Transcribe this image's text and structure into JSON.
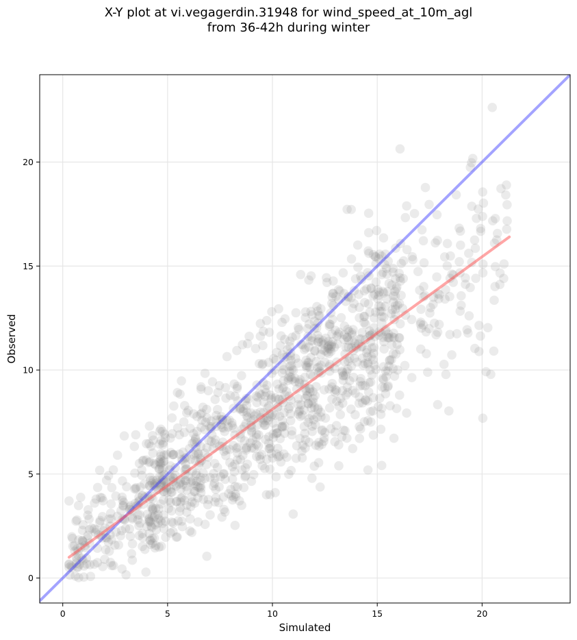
{
  "chart_data": {
    "type": "scatter",
    "title_line1": "X-Y plot at vi.vegagerdin.31948 for wind_speed_at_10m_agl",
    "title_line2": "from 36-42h during winter",
    "xlabel": "Simulated",
    "ylabel": "Observed",
    "xlim": [
      -1.1,
      24.2
    ],
    "ylim": [
      -1.2,
      24.2
    ],
    "xticks": [
      0,
      5,
      10,
      15,
      20
    ],
    "yticks": [
      0,
      5,
      10,
      15,
      20
    ],
    "grid": true,
    "point_color": "#808080",
    "identity_line": {
      "color": "#3333ff",
      "x": [
        -1.1,
        24.2
      ],
      "y": [
        -1.1,
        24.2
      ]
    },
    "fit_line": {
      "color": "#ff4d4d",
      "x": [
        0.3,
        21.3
      ],
      "y": [
        1.0,
        16.4
      ]
    },
    "point_count": 1300,
    "points_note": "dense cloud of ~1300 translucent grey points roughly along y = 0.75x + 0.8 with spread increasing toward mid-range"
  }
}
